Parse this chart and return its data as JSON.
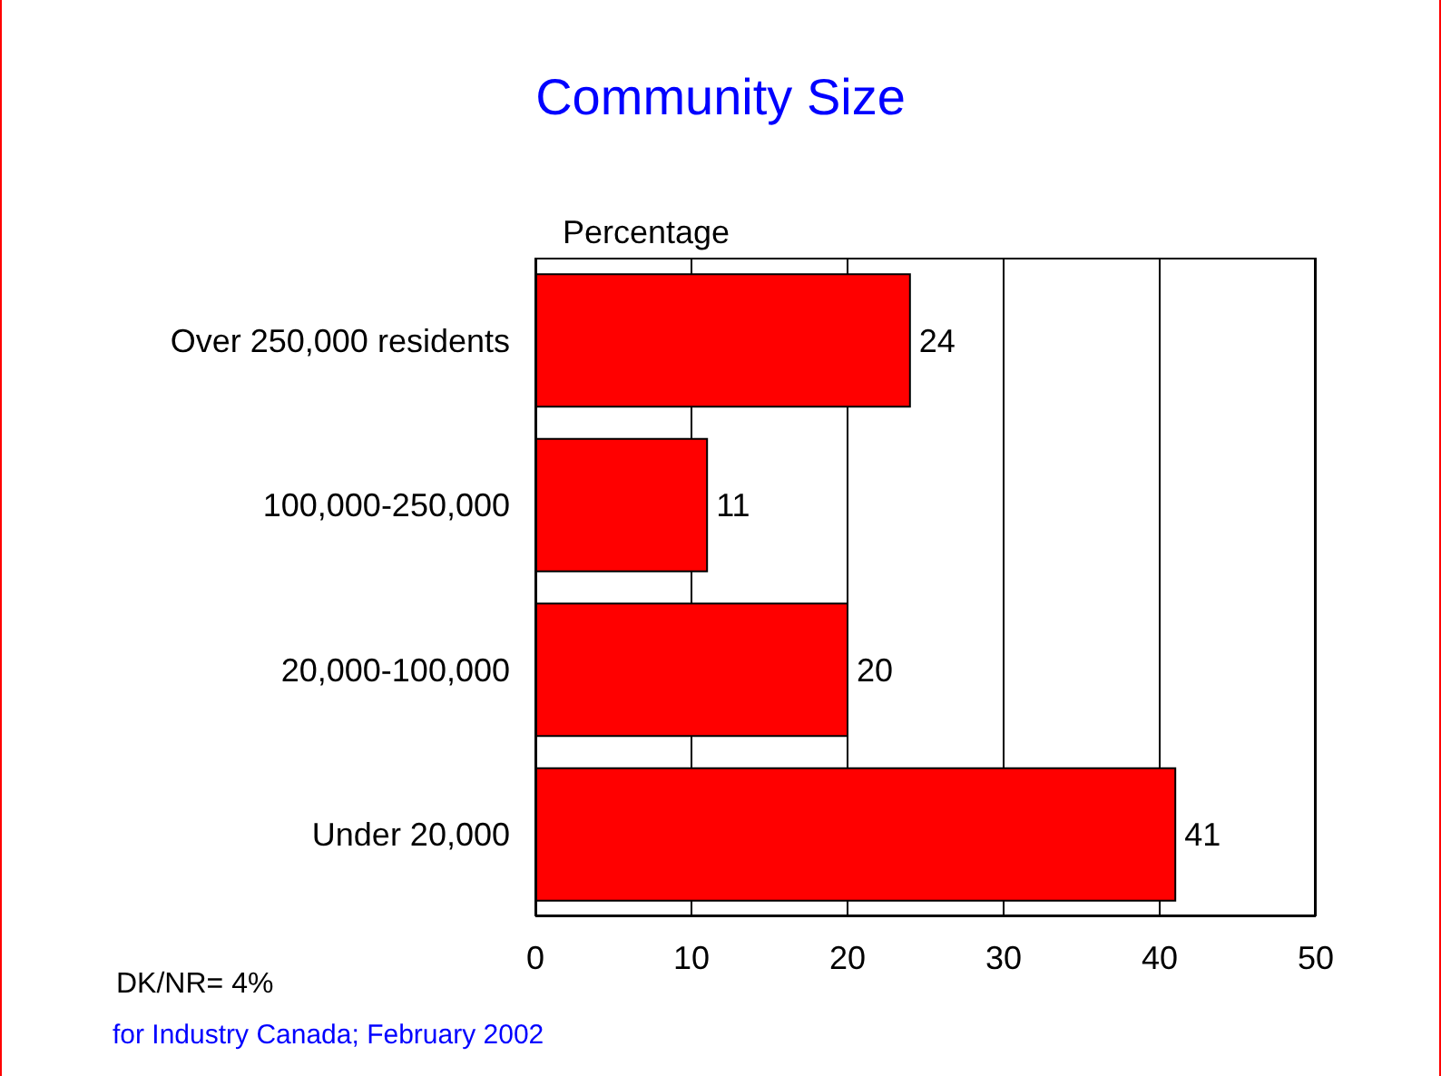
{
  "chart_data": {
    "type": "bar",
    "orientation": "horizontal",
    "title": "Community Size",
    "xlabel": "Percentage",
    "categories": [
      "Over 250,000 residents",
      "100,000-250,000",
      "20,000-100,000",
      "Under 20,000"
    ],
    "values": [
      24,
      11,
      20,
      41
    ],
    "color": "#ff0000",
    "xlim": [
      0,
      50
    ],
    "xticks": [
      0,
      10,
      20,
      30,
      40,
      50
    ],
    "grid": "x",
    "data_labels": true,
    "annotations": [
      "DK/NR= 4%",
      "for Industry Canada; February 2002"
    ]
  }
}
